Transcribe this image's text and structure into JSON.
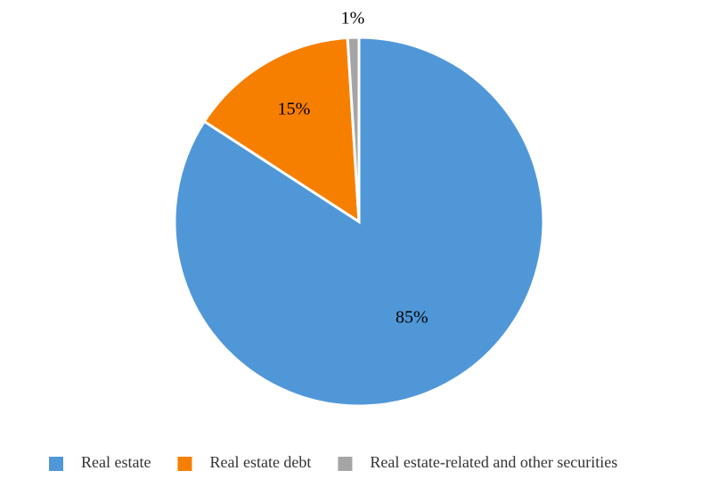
{
  "chart_data": {
    "type": "pie",
    "categories": [
      "Real estate",
      "Real estate debt",
      "Real estate-related and other securities"
    ],
    "values": [
      85,
      15,
      1
    ],
    "value_labels": [
      "85%",
      "15%",
      "1%"
    ],
    "colors": [
      "#5097d8",
      "#f77f00",
      "#a5a5a5"
    ],
    "legend": "bottom"
  }
}
